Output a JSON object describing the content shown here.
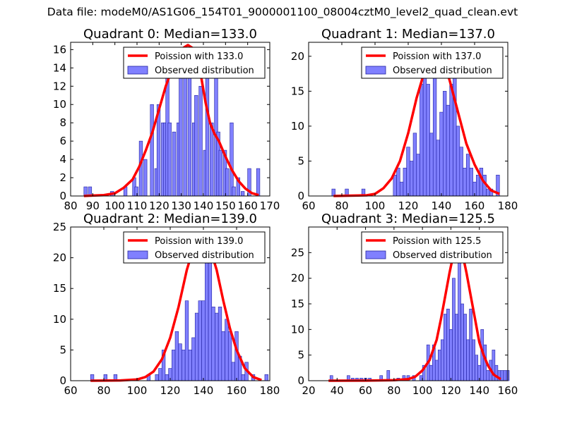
{
  "suptitle": "Data file: modeM0/AS1G06_154T01_9000001100_08004cztM0_level2_quad_clean.evt",
  "colors": {
    "bar_fill": "#8080ff",
    "bar_edge": "#2020a0",
    "curve": "#ff0000",
    "axis": "#000000"
  },
  "chart_data": [
    {
      "type": "bar",
      "title": "Quadrant 0: Median=133.0",
      "xlabel": "",
      "ylabel": "",
      "xlim": [
        80,
        170
      ],
      "ylim": [
        0,
        16.8
      ],
      "xticks": [
        80,
        90,
        100,
        110,
        120,
        130,
        140,
        150,
        160,
        170
      ],
      "yticks": [
        0,
        2,
        4,
        6,
        8,
        10,
        12,
        14,
        16
      ],
      "legend_position": "top-right",
      "series": [
        {
          "name": "Poission with 133.0",
          "kind": "line",
          "x": [
            86,
            90,
            95,
            100,
            104,
            108,
            111,
            114,
            117,
            120,
            123,
            126,
            129,
            131,
            133,
            135,
            137,
            139,
            141,
            143,
            145,
            147,
            150,
            153,
            156,
            159,
            162,
            165
          ],
          "y": [
            0,
            0.05,
            0.1,
            0.3,
            0.9,
            1.8,
            3.2,
            5,
            7,
            9.5,
            12,
            14,
            15.5,
            16.2,
            16.5,
            16.2,
            15,
            13,
            10.2,
            8,
            6.8,
            6,
            4.3,
            2.8,
            1.6,
            0.8,
            0.3,
            0.1
          ]
        },
        {
          "name": "Observed distribution",
          "kind": "histogram",
          "bin_width": 1.5,
          "bins": [
            [
              86,
              1
            ],
            [
              88,
              1
            ],
            [
              98,
              0.5
            ],
            [
              104,
              1
            ],
            [
              108,
              2
            ],
            [
              109,
              1
            ],
            [
              111,
              6
            ],
            [
              113,
              4
            ],
            [
              116,
              10
            ],
            [
              118,
              3
            ],
            [
              119,
              10
            ],
            [
              121,
              8
            ],
            [
              122,
              8
            ],
            [
              123,
              13
            ],
            [
              124,
              8
            ],
            [
              126,
              7
            ],
            [
              128,
              8
            ],
            [
              129,
              14
            ],
            [
              131,
              16
            ],
            [
              133,
              14
            ],
            [
              135,
              8
            ],
            [
              136,
              11
            ],
            [
              138,
              12
            ],
            [
              140,
              5
            ],
            [
              141,
              13
            ],
            [
              143,
              8
            ],
            [
              145,
              14
            ],
            [
              146,
              7
            ],
            [
              147,
              5
            ],
            [
              149,
              5
            ],
            [
              150,
              3
            ],
            [
              152,
              8
            ],
            [
              153,
              1
            ],
            [
              155,
              2
            ],
            [
              157,
              0.5
            ],
            [
              160,
              3
            ],
            [
              164,
              3
            ]
          ]
        }
      ]
    },
    {
      "type": "bar",
      "title": "Quadrant 1: Median=137.0",
      "xlabel": "",
      "ylabel": "",
      "xlim": [
        60,
        180
      ],
      "ylim": [
        0,
        22
      ],
      "xticks": [
        60,
        80,
        100,
        120,
        140,
        160,
        180
      ],
      "yticks": [
        0,
        5,
        10,
        15,
        20
      ],
      "legend_position": "top-right",
      "series": [
        {
          "name": "Poission with 137.0",
          "kind": "line",
          "x": [
            75,
            85,
            95,
            100,
            105,
            110,
            115,
            120,
            125,
            130,
            135,
            137,
            140,
            145,
            150,
            155,
            160,
            165,
            170,
            175
          ],
          "y": [
            0,
            0.05,
            0.1,
            0.3,
            1.1,
            2.5,
            5,
            9,
            14,
            18,
            20.5,
            21,
            20.2,
            16.5,
            12,
            7.5,
            4.5,
            2.2,
            0.8,
            0.3
          ]
        },
        {
          "name": "Observed distribution",
          "kind": "histogram",
          "bin_width": 2,
          "bins": [
            [
              74,
              1
            ],
            [
              82,
              1
            ],
            [
              92,
              1
            ],
            [
              111,
              3
            ],
            [
              113,
              4
            ],
            [
              115,
              2
            ],
            [
              117,
              4
            ],
            [
              119,
              7
            ],
            [
              121,
              5
            ],
            [
              123,
              9
            ],
            [
              125,
              6
            ],
            [
              127,
              16
            ],
            [
              129,
              18
            ],
            [
              131,
              16
            ],
            [
              133,
              9
            ],
            [
              135,
              20
            ],
            [
              137,
              8
            ],
            [
              139,
              12
            ],
            [
              141,
              15
            ],
            [
              143,
              13
            ],
            [
              145,
              16
            ],
            [
              147,
              20
            ],
            [
              149,
              10
            ],
            [
              151,
              7
            ],
            [
              153,
              4
            ],
            [
              155,
              6
            ],
            [
              157,
              4
            ],
            [
              159,
              2
            ],
            [
              161,
              3
            ],
            [
              163,
              4
            ],
            [
              165,
              3
            ],
            [
              167,
              1
            ],
            [
              169,
              1
            ],
            [
              173,
              3
            ]
          ]
        }
      ]
    },
    {
      "type": "bar",
      "title": "Quadrant 2: Median=139.0",
      "xlabel": "",
      "ylabel": "",
      "xlim": [
        60,
        180
      ],
      "ylim": [
        0,
        25
      ],
      "xticks": [
        60,
        80,
        100,
        120,
        140,
        160,
        180
      ],
      "yticks": [
        0,
        5,
        10,
        15,
        20,
        25
      ],
      "legend_position": "top-right",
      "series": [
        {
          "name": "Poission with 139.0",
          "kind": "line",
          "x": [
            72,
            90,
            100,
            105,
            110,
            115,
            120,
            125,
            130,
            135,
            139,
            143,
            148,
            152,
            156,
            160,
            165,
            170,
            175
          ],
          "y": [
            0,
            0.05,
            0.2,
            0.6,
            1.5,
            3.5,
            7,
            12,
            18,
            22.5,
            24,
            22.5,
            18,
            13,
            8.5,
            5,
            2,
            0.6,
            0.1
          ]
        },
        {
          "name": "Observed distribution",
          "kind": "histogram",
          "bin_width": 2,
          "bins": [
            [
              72,
              1
            ],
            [
              80,
              1
            ],
            [
              86,
              1
            ],
            [
              106,
              1
            ],
            [
              111,
              1
            ],
            [
              113,
              2
            ],
            [
              115,
              5
            ],
            [
              117,
              1
            ],
            [
              119,
              2
            ],
            [
              121,
              5
            ],
            [
              123,
              8
            ],
            [
              125,
              6
            ],
            [
              127,
              5
            ],
            [
              129,
              13
            ],
            [
              131,
              5
            ],
            [
              133,
              7
            ],
            [
              135,
              11
            ],
            [
              137,
              13
            ],
            [
              139,
              13
            ],
            [
              141,
              20
            ],
            [
              143,
              24
            ],
            [
              145,
              12
            ],
            [
              147,
              11
            ],
            [
              149,
              12
            ],
            [
              151,
              8
            ],
            [
              153,
              10
            ],
            [
              155,
              8
            ],
            [
              157,
              3
            ],
            [
              159,
              8
            ],
            [
              161,
              4
            ],
            [
              163,
              1
            ],
            [
              165,
              3
            ],
            [
              169,
              1
            ],
            [
              177,
              1
            ]
          ]
        }
      ]
    },
    {
      "type": "bar",
      "title": "Quadrant 3: Median=125.5",
      "xlabel": "",
      "ylabel": "",
      "xlim": [
        20,
        160
      ],
      "ylim": [
        0,
        30
      ],
      "xticks": [
        20,
        40,
        60,
        80,
        100,
        120,
        140,
        160
      ],
      "yticks": [
        0,
        5,
        10,
        15,
        20,
        25
      ],
      "legend_position": "top-right",
      "series": [
        {
          "name": "Poission with 125.5",
          "kind": "line",
          "x": [
            34,
            60,
            80,
            90,
            95,
            100,
            105,
            110,
            113,
            116,
            119,
            122,
            125,
            128,
            131,
            134,
            137,
            140,
            143,
            146,
            150,
            155
          ],
          "y": [
            0,
            0.02,
            0.1,
            0.3,
            0.8,
            2,
            4,
            8,
            12,
            16.5,
            21,
            25,
            27.5,
            25,
            21,
            16.5,
            12,
            7.5,
            5,
            3,
            1.2,
            0.3
          ]
        },
        {
          "name": "Observed distribution",
          "kind": "histogram",
          "bin_width": 2,
          "bins": [
            [
              35,
              1
            ],
            [
              47,
              1
            ],
            [
              50,
              0.5
            ],
            [
              53,
              0.5
            ],
            [
              56,
              0.5
            ],
            [
              59,
              0.5
            ],
            [
              62,
              0.5
            ],
            [
              70,
              1
            ],
            [
              75,
              2
            ],
            [
              82,
              0.5
            ],
            [
              86,
              1
            ],
            [
              89,
              1
            ],
            [
              93,
              1
            ],
            [
              98,
              1
            ],
            [
              100,
              3
            ],
            [
              103,
              7
            ],
            [
              105,
              3
            ],
            [
              107,
              7
            ],
            [
              109,
              4
            ],
            [
              111,
              6
            ],
            [
              113,
              8
            ],
            [
              115,
              13
            ],
            [
              117,
              14
            ],
            [
              119,
              10
            ],
            [
              121,
              20
            ],
            [
              123,
              13
            ],
            [
              125,
              27
            ],
            [
              127,
              15
            ],
            [
              129,
              13
            ],
            [
              131,
              8
            ],
            [
              133,
              14
            ],
            [
              135,
              8
            ],
            [
              137,
              5
            ],
            [
              139,
              3
            ],
            [
              141,
              10
            ],
            [
              143,
              7
            ],
            [
              145,
              2
            ],
            [
              147,
              4
            ],
            [
              149,
              6
            ],
            [
              151,
              3
            ],
            [
              153,
              2
            ],
            [
              155,
              2
            ],
            [
              157,
              2
            ],
            [
              159,
              2
            ]
          ]
        }
      ]
    }
  ]
}
